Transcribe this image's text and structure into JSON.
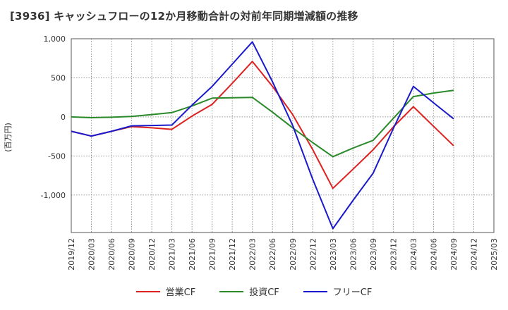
{
  "title": "[3936]  キャッシュフローの12か月移動合計の対前年同期増減額の推移",
  "chart_data": {
    "type": "line",
    "title": "[3936]  キャッシュフローの12か月移動合計の対前年同期増減額の推移",
    "ylabel": "(百万円)",
    "xlabel": "",
    "x": [
      "2019/12",
      "2020/03",
      "2020/06",
      "2020/09",
      "2020/12",
      "2021/03",
      "2021/06",
      "2021/09",
      "2021/12",
      "2022/03",
      "2022/06",
      "2022/09",
      "2022/12",
      "2023/03",
      "2023/06",
      "2023/09",
      "2023/12",
      "2024/03",
      "2024/06",
      "2024/09",
      "2024/12",
      "2025/03"
    ],
    "ylim": [
      -1480,
      1000
    ],
    "yticks": [
      1000,
      500,
      0,
      -500,
      -1000
    ],
    "ytick_labels": [
      "1,000",
      "500",
      "0",
      "-500",
      "-1,000"
    ],
    "grid": true,
    "legend_position": "bottom",
    "series": [
      {
        "name": "営業CF",
        "color": "#dd2222",
        "values": [
          -185,
          -245,
          -185,
          -125,
          -140,
          -160,
          10,
          160,
          430,
          710,
          390,
          30,
          -420,
          -915,
          -670,
          -420,
          -130,
          130,
          -120,
          -370,
          null,
          null
        ]
      },
      {
        "name": "投資CF",
        "color": "#2a8a2a",
        "values": [
          0,
          -10,
          -5,
          5,
          30,
          55,
          140,
          240,
          245,
          250,
          60,
          -140,
          -330,
          -510,
          -400,
          -300,
          -20,
          260,
          305,
          340,
          null,
          null
        ]
      },
      {
        "name": "フリーCF",
        "color": "#1a1acc",
        "values": [
          -185,
          -245,
          -185,
          -115,
          -110,
          -105,
          150,
          390,
          675,
          960,
          450,
          -110,
          -800,
          -1430,
          -1070,
          -720,
          -150,
          390,
          180,
          -25,
          null,
          null
        ]
      }
    ]
  }
}
